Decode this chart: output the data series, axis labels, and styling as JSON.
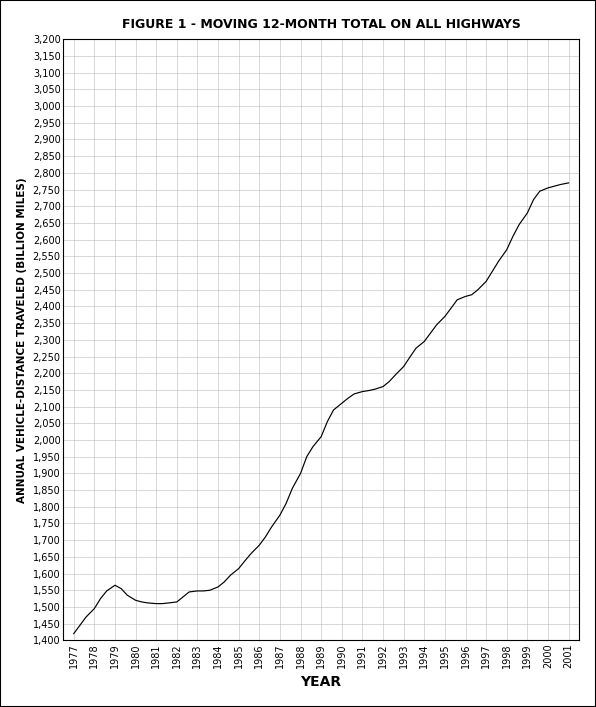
{
  "title": "FIGURE 1 - MOVING 12-MONTH TOTAL ON ALL HIGHWAYS",
  "xlabel": "YEAR",
  "ylabel": "ANNUAL VEHICLE-DISTANCE TRAVELED (BILLION MILES)",
  "xlim_left": 1976.5,
  "xlim_right": 2001.5,
  "ylim": [
    1400,
    3200
  ],
  "ytick_min": 1400,
  "ytick_max": 3200,
  "ytick_step": 50,
  "background_color": "#ffffff",
  "line_color": "#000000",
  "grid_color": "#bbbbbb",
  "years": [
    1977.0,
    1977.3,
    1977.6,
    1978.0,
    1978.3,
    1978.6,
    1979.0,
    1979.3,
    1979.6,
    1980.0,
    1980.3,
    1980.6,
    1981.0,
    1981.3,
    1981.6,
    1982.0,
    1982.3,
    1982.6,
    1983.0,
    1983.3,
    1983.6,
    1984.0,
    1984.3,
    1984.6,
    1985.0,
    1985.3,
    1985.6,
    1986.0,
    1986.3,
    1986.6,
    1987.0,
    1987.3,
    1987.6,
    1988.0,
    1988.3,
    1988.6,
    1989.0,
    1989.3,
    1989.6,
    1990.0,
    1990.3,
    1990.6,
    1991.0,
    1991.3,
    1991.6,
    1992.0,
    1992.3,
    1992.6,
    1993.0,
    1993.3,
    1993.6,
    1994.0,
    1994.3,
    1994.6,
    1995.0,
    1995.3,
    1995.6,
    1996.0,
    1996.3,
    1996.6,
    1997.0,
    1997.3,
    1997.6,
    1998.0,
    1998.3,
    1998.6,
    1999.0,
    1999.3,
    1999.6,
    2000.0,
    2000.3,
    2000.6,
    2001.0
  ],
  "values": [
    1420,
    1445,
    1470,
    1495,
    1525,
    1548,
    1565,
    1555,
    1535,
    1520,
    1515,
    1512,
    1510,
    1510,
    1512,
    1515,
    1530,
    1545,
    1548,
    1548,
    1550,
    1560,
    1575,
    1595,
    1615,
    1638,
    1660,
    1685,
    1710,
    1740,
    1775,
    1810,
    1855,
    1900,
    1950,
    1980,
    2010,
    2055,
    2090,
    2110,
    2125,
    2138,
    2145,
    2148,
    2152,
    2160,
    2175,
    2195,
    2220,
    2248,
    2275,
    2295,
    2320,
    2345,
    2370,
    2395,
    2420,
    2430,
    2435,
    2450,
    2475,
    2505,
    2535,
    2570,
    2610,
    2645,
    2680,
    2720,
    2745,
    2755,
    2760,
    2765,
    2770
  ]
}
